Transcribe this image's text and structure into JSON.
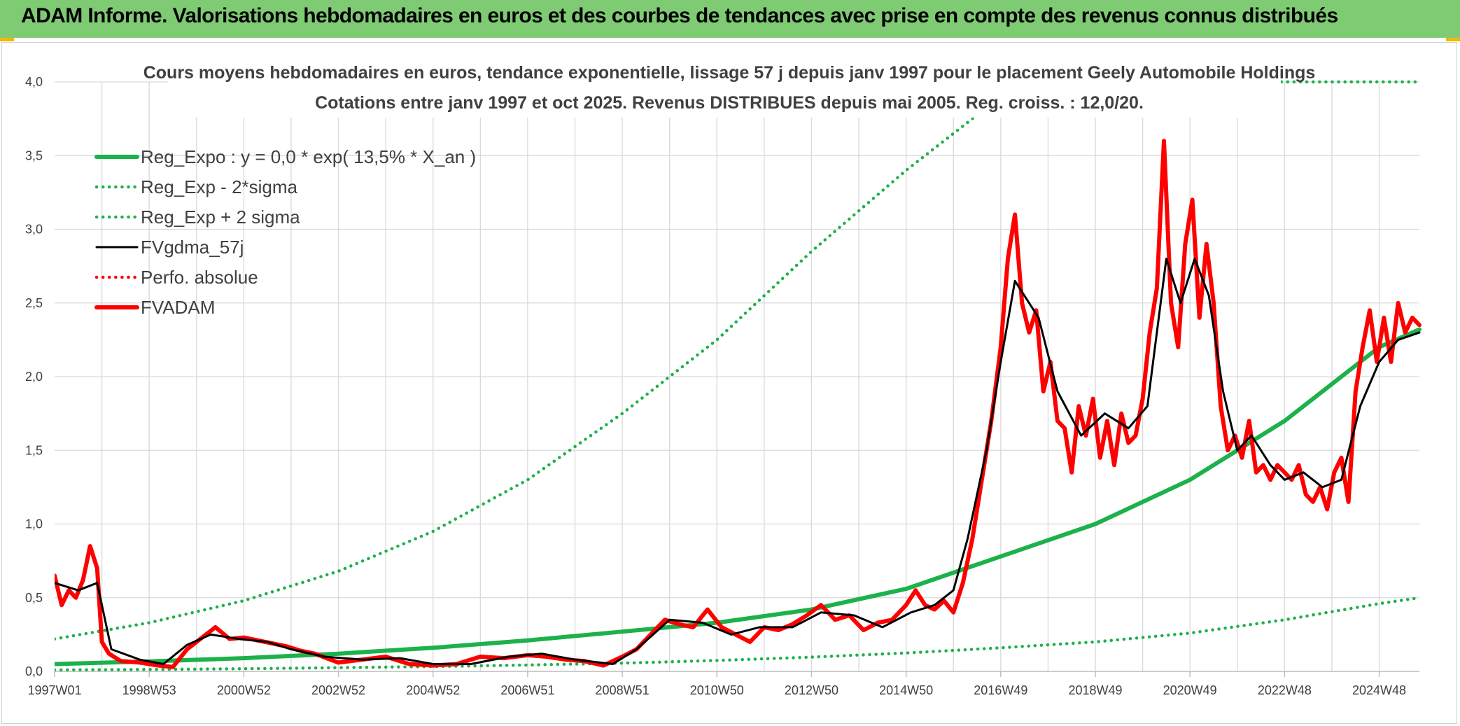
{
  "banner": {
    "title": "ADAM Informe. Valorisations hebdomadaires en euros et des courbes de tendances avec prise en compte des revenus connus distribués"
  },
  "colors": {
    "banner_bg": "#7fcb74",
    "regression": "#1db14b",
    "band": "#1db14b",
    "smoothed": "#000000",
    "fvadam": "#ff0000",
    "grid": "#d9d9d9"
  },
  "chart_data": {
    "type": "line",
    "subtitle_line1": "Cours moyens hebdomadaires en euros, tendance exponentielle, lissage 57 j depuis janv 1997 pour le placement Geely Automobile Holdings",
    "subtitle_line2": "Cotations entre janv 1997 et oct 2025. Revenus DISTRIBUES depuis mai 2005. Reg. croiss. : 12,0/20.",
    "x_tick_labels": [
      "1997W01",
      "1998W53",
      "2000W52",
      "2002W52",
      "2004W52",
      "2006W51",
      "2008W51",
      "2010W50",
      "2012W50",
      "2014W50",
      "2016W49",
      "2018W49",
      "2020W49",
      "2022W48",
      "2024W48"
    ],
    "x_tick_years": [
      1997.0,
      1999.0,
      2001.0,
      2003.0,
      2005.0,
      2007.0,
      2009.0,
      2011.0,
      2013.0,
      2015.0,
      2017.0,
      2019.0,
      2021.0,
      2023.0,
      2025.0
    ],
    "y_tick_labels": [
      "0,0",
      "0,5",
      "1,0",
      "1,5",
      "2,0",
      "2,5",
      "3,0",
      "3,5",
      "4,0"
    ],
    "ylim": [
      0,
      4
    ],
    "xlim_years": [
      1997.0,
      2025.85
    ],
    "grid": true,
    "legend_position": "top-left",
    "series": [
      {
        "name": "Reg_Expo : y = 0,0 * exp( 13,5% *  X_an )",
        "style": "solid-thick",
        "color": "#1db14b",
        "x": [
          1997,
          1999,
          2001,
          2003,
          2005,
          2007,
          2009,
          2011,
          2013,
          2015,
          2017,
          2019,
          2021,
          2023,
          2025,
          2025.85
        ],
        "y": [
          0.05,
          0.068,
          0.09,
          0.12,
          0.16,
          0.21,
          0.27,
          0.33,
          0.42,
          0.56,
          0.78,
          1.0,
          1.3,
          1.7,
          2.2,
          2.32
        ]
      },
      {
        "name": "Reg_Exp - 2*sigma",
        "style": "dotted",
        "color": "#1db14b",
        "x": [
          1997,
          1999,
          2001,
          2003,
          2005,
          2007,
          2009,
          2011,
          2013,
          2015,
          2017,
          2019,
          2021,
          2023,
          2025,
          2025.85
        ],
        "y": [
          0.01,
          0.013,
          0.018,
          0.025,
          0.033,
          0.043,
          0.056,
          0.074,
          0.097,
          0.125,
          0.16,
          0.2,
          0.26,
          0.35,
          0.46,
          0.5
        ]
      },
      {
        "name": "Reg_Exp + 2 sigma",
        "style": "dotted",
        "color": "#1db14b",
        "x": [
          1997,
          1999,
          2001,
          2003,
          2005,
          2007,
          2009,
          2011,
          2013,
          2015,
          2017,
          2018,
          2019,
          2020,
          2021,
          2022,
          2023,
          2024,
          2025,
          2025.85
        ],
        "y": [
          0.22,
          0.33,
          0.48,
          0.68,
          0.95,
          1.3,
          1.75,
          2.25,
          2.85,
          3.4,
          3.9,
          4.0,
          4.0,
          4.0,
          4.0,
          4.0,
          4.0,
          4.0,
          4.0,
          4.0
        ]
      },
      {
        "name": "FVgdma_57j",
        "style": "solid",
        "color": "#000000",
        "x": [
          1997.0,
          1997.5,
          1997.9,
          1998.2,
          1998.8,
          1999.3,
          1999.8,
          2000.3,
          2000.9,
          2001.5,
          2002.0,
          2002.7,
          2003.5,
          2004.3,
          2005.0,
          2005.8,
          2006.6,
          2007.3,
          2008.0,
          2008.8,
          2009.3,
          2010.0,
          2010.7,
          2011.3,
          2011.9,
          2012.6,
          2013.2,
          2013.9,
          2014.5,
          2015.1,
          2015.6,
          2016.0,
          2016.3,
          2016.7,
          2017.0,
          2017.3,
          2017.8,
          2018.2,
          2018.7,
          2019.2,
          2019.7,
          2020.1,
          2020.5,
          2020.8,
          2021.1,
          2021.4,
          2021.7,
          2022.0,
          2022.3,
          2022.7,
          2023.0,
          2023.4,
          2023.8,
          2024.2,
          2024.6,
          2025.0,
          2025.4,
          2025.85
        ],
        "y": [
          0.6,
          0.55,
          0.6,
          0.15,
          0.08,
          0.05,
          0.18,
          0.25,
          0.22,
          0.2,
          0.15,
          0.1,
          0.08,
          0.09,
          0.05,
          0.05,
          0.1,
          0.12,
          0.08,
          0.05,
          0.15,
          0.35,
          0.33,
          0.25,
          0.3,
          0.3,
          0.4,
          0.38,
          0.3,
          0.4,
          0.45,
          0.55,
          0.9,
          1.5,
          2.1,
          2.65,
          2.4,
          1.9,
          1.6,
          1.75,
          1.65,
          1.8,
          2.8,
          2.5,
          2.8,
          2.55,
          1.9,
          1.5,
          1.6,
          1.4,
          1.3,
          1.35,
          1.25,
          1.3,
          1.8,
          2.1,
          2.25,
          2.3
        ]
      },
      {
        "name": "Perfo. absolue",
        "style": "dotted",
        "color": "#ff0000",
        "x": [],
        "y": []
      },
      {
        "name": "FVADAM",
        "style": "solid-thick",
        "color": "#ff0000",
        "x": [
          1997.0,
          1997.15,
          1997.3,
          1997.45,
          1997.6,
          1997.75,
          1997.9,
          1998.0,
          1998.15,
          1998.4,
          1998.8,
          1999.2,
          1999.5,
          1999.8,
          2000.0,
          2000.2,
          2000.4,
          2000.7,
          2001.0,
          2001.3,
          2001.6,
          2001.9,
          2002.2,
          2002.5,
          2003.0,
          2003.5,
          2004.0,
          2004.5,
          2005.0,
          2005.5,
          2006.0,
          2006.5,
          2007.0,
          2007.4,
          2007.8,
          2008.2,
          2008.6,
          2009.0,
          2009.3,
          2009.6,
          2009.9,
          2010.2,
          2010.5,
          2010.8,
          2011.1,
          2011.4,
          2011.7,
          2012.0,
          2012.3,
          2012.6,
          2012.9,
          2013.2,
          2013.5,
          2013.8,
          2014.1,
          2014.4,
          2014.7,
          2015.0,
          2015.2,
          2015.4,
          2015.6,
          2015.8,
          2016.0,
          2016.2,
          2016.4,
          2016.6,
          2016.8,
          2017.0,
          2017.15,
          2017.3,
          2017.45,
          2017.6,
          2017.75,
          2017.9,
          2018.05,
          2018.2,
          2018.35,
          2018.5,
          2018.65,
          2018.8,
          2018.95,
          2019.1,
          2019.25,
          2019.4,
          2019.55,
          2019.7,
          2019.85,
          2020.0,
          2020.15,
          2020.3,
          2020.45,
          2020.6,
          2020.75,
          2020.9,
          2021.05,
          2021.2,
          2021.35,
          2021.5,
          2021.65,
          2021.8,
          2021.95,
          2022.1,
          2022.25,
          2022.4,
          2022.55,
          2022.7,
          2022.85,
          2023.0,
          2023.15,
          2023.3,
          2023.45,
          2023.6,
          2023.75,
          2023.9,
          2024.05,
          2024.2,
          2024.35,
          2024.5,
          2024.65,
          2024.8,
          2024.95,
          2025.1,
          2025.25,
          2025.4,
          2025.55,
          2025.7,
          2025.85
        ],
        "y": [
          0.65,
          0.45,
          0.55,
          0.5,
          0.62,
          0.85,
          0.7,
          0.2,
          0.12,
          0.07,
          0.06,
          0.04,
          0.03,
          0.15,
          0.2,
          0.25,
          0.3,
          0.22,
          0.23,
          0.21,
          0.19,
          0.17,
          0.14,
          0.12,
          0.06,
          0.08,
          0.1,
          0.05,
          0.04,
          0.05,
          0.1,
          0.09,
          0.11,
          0.1,
          0.08,
          0.07,
          0.04,
          0.1,
          0.15,
          0.25,
          0.35,
          0.32,
          0.3,
          0.42,
          0.3,
          0.25,
          0.2,
          0.3,
          0.28,
          0.32,
          0.38,
          0.45,
          0.35,
          0.38,
          0.28,
          0.33,
          0.35,
          0.45,
          0.55,
          0.45,
          0.42,
          0.48,
          0.4,
          0.6,
          0.9,
          1.3,
          1.7,
          2.2,
          2.8,
          3.1,
          2.5,
          2.3,
          2.45,
          1.9,
          2.1,
          1.7,
          1.65,
          1.35,
          1.8,
          1.6,
          1.85,
          1.45,
          1.7,
          1.4,
          1.75,
          1.55,
          1.6,
          1.85,
          2.3,
          2.6,
          3.6,
          2.5,
          2.2,
          2.9,
          3.2,
          2.4,
          2.9,
          2.5,
          1.8,
          1.5,
          1.6,
          1.45,
          1.7,
          1.35,
          1.4,
          1.3,
          1.4,
          1.35,
          1.3,
          1.4,
          1.2,
          1.15,
          1.25,
          1.1,
          1.35,
          1.45,
          1.15,
          1.9,
          2.2,
          2.45,
          2.1,
          2.4,
          2.1,
          2.5,
          2.3,
          2.4,
          2.35
        ]
      }
    ]
  }
}
